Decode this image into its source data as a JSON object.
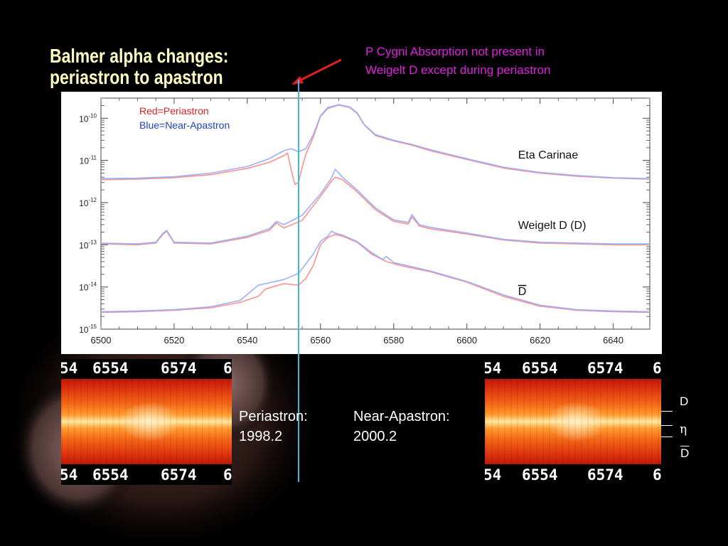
{
  "slide": {
    "title_line1": "Balmer alpha changes:",
    "title_line2": "periastron to apastron",
    "annotation_line1": "P Cygni Absorption not present in",
    "annotation_line2": "Weigelt D except during periastron",
    "captions": [
      {
        "label": "Periastron:",
        "date": "1998.2"
      },
      {
        "label": "Near-Apastron:",
        "date": "2000.2"
      }
    ],
    "image_ticks": [
      "54",
      "6554",
      "6574",
      "6"
    ],
    "slit_labels": [
      "D",
      "η",
      "D"
    ],
    "colors": {
      "title": "#ffffc0",
      "annotation": "#e020e0",
      "marker": "#40b8d8",
      "arrow": "#e02020"
    }
  },
  "chart_data": {
    "type": "line",
    "scale_y": "log",
    "xlim": [
      6500,
      6650
    ],
    "ylim": [
      1e-15,
      3e-10
    ],
    "x_ticks": [
      "6500",
      "6520",
      "6540",
      "6560",
      "6580",
      "6600",
      "6620",
      "6640"
    ],
    "x_tick_values": [
      6500,
      6520,
      6540,
      6560,
      6580,
      6600,
      6620,
      6640
    ],
    "y_ticks": [
      {
        "mant": "10",
        "exp": "-10",
        "value": 1e-10
      },
      {
        "mant": "10",
        "exp": "-11",
        "value": 1e-11
      },
      {
        "mant": "10",
        "exp": "-12",
        "value": 1e-12
      },
      {
        "mant": "10",
        "exp": "-13",
        "value": 1e-13
      },
      {
        "mant": "10",
        "exp": "-14",
        "value": 1e-14
      },
      {
        "mant": "10",
        "exp": "-15",
        "value": 1e-15
      }
    ],
    "legend": [
      {
        "text": "Red=Periastron",
        "color": "#e02020"
      },
      {
        "text": "Blue=Near-Apastron",
        "color": "#2040c0"
      }
    ],
    "marker_x": 6554,
    "labels": [
      {
        "text": "Eta Carinae",
        "x": 6614,
        "y": 1.1e-11
      },
      {
        "text": "Weigelt D  (D)",
        "x": 6614,
        "y": 2.4e-13
      },
      {
        "text": "D",
        "x": 6614,
        "y": 6.5e-15,
        "overline": true
      }
    ],
    "series": [
      {
        "name": "Eta Carinae (periastron)",
        "color": "#ff9090",
        "points": [
          [
            6500,
            3.5e-12
          ],
          [
            6510,
            3.6e-12
          ],
          [
            6520,
            3.9e-12
          ],
          [
            6530,
            4.6e-12
          ],
          [
            6540,
            6.5e-12
          ],
          [
            6546,
            9e-12
          ],
          [
            6550,
            1.3e-11
          ],
          [
            6551,
            1.5e-11
          ],
          [
            6552,
            6e-12
          ],
          [
            6553,
            2.7e-12
          ],
          [
            6554,
            3e-12
          ],
          [
            6555,
            7e-12
          ],
          [
            6556,
            1.4e-11
          ],
          [
            6558,
            3.5e-11
          ],
          [
            6560,
            1.1e-10
          ],
          [
            6562,
            1.7e-10
          ],
          [
            6565,
            2.05e-10
          ],
          [
            6568,
            1.8e-10
          ],
          [
            6570,
            1.3e-10
          ],
          [
            6572,
            6.8e-11
          ],
          [
            6575,
            3.9e-11
          ],
          [
            6580,
            2.9e-11
          ],
          [
            6585,
            2.3e-11
          ],
          [
            6590,
            1.7e-11
          ],
          [
            6600,
            1.05e-11
          ],
          [
            6610,
            6.6e-12
          ],
          [
            6620,
            5e-12
          ],
          [
            6630,
            4.2e-12
          ],
          [
            6640,
            3.8e-12
          ],
          [
            6650,
            3.6e-12
          ]
        ]
      },
      {
        "name": "Eta Carinae (near-apastron)",
        "color": "#9ab0ff",
        "points": [
          [
            6500,
            3.7e-12
          ],
          [
            6510,
            3.8e-12
          ],
          [
            6520,
            4.1e-12
          ],
          [
            6530,
            5e-12
          ],
          [
            6540,
            7.2e-12
          ],
          [
            6546,
            1.1e-11
          ],
          [
            6550,
            1.7e-11
          ],
          [
            6552,
            1.9e-11
          ],
          [
            6554,
            1.6e-11
          ],
          [
            6556,
            1.9e-11
          ],
          [
            6558,
            4e-11
          ],
          [
            6560,
            1.15e-10
          ],
          [
            6562,
            1.8e-10
          ],
          [
            6565,
            2.1e-10
          ],
          [
            6568,
            1.85e-10
          ],
          [
            6570,
            1.35e-10
          ],
          [
            6572,
            7e-11
          ],
          [
            6575,
            4.1e-11
          ],
          [
            6580,
            3e-11
          ],
          [
            6585,
            2.4e-11
          ],
          [
            6590,
            1.8e-11
          ],
          [
            6600,
            1.1e-11
          ],
          [
            6610,
            6.9e-12
          ],
          [
            6620,
            5.2e-12
          ],
          [
            6630,
            4.4e-12
          ],
          [
            6640,
            3.9e-12
          ],
          [
            6650,
            3.7e-12
          ]
        ]
      },
      {
        "name": "Weigelt D (periastron)",
        "color": "#ff9090",
        "points": [
          [
            6500,
            1.05e-13
          ],
          [
            6510,
            1e-13
          ],
          [
            6515,
            1.1e-13
          ],
          [
            6517,
            1.8e-13
          ],
          [
            6518,
            2.1e-13
          ],
          [
            6520,
            1.1e-13
          ],
          [
            6530,
            1.05e-13
          ],
          [
            6540,
            1.5e-13
          ],
          [
            6546,
            2.2e-13
          ],
          [
            6548,
            3.3e-13
          ],
          [
            6550,
            2.5e-13
          ],
          [
            6555,
            3.8e-13
          ],
          [
            6560,
            1.4e-12
          ],
          [
            6563,
            3.2e-12
          ],
          [
            6564,
            4e-12
          ],
          [
            6566,
            3.5e-12
          ],
          [
            6570,
            1.8e-12
          ],
          [
            6575,
            6.8e-13
          ],
          [
            6580,
            3.6e-13
          ],
          [
            6584,
            3.1e-13
          ],
          [
            6585,
            4.6e-13
          ],
          [
            6587,
            2.8e-13
          ],
          [
            6590,
            2.4e-13
          ],
          [
            6600,
            1.8e-13
          ],
          [
            6610,
            1.3e-13
          ],
          [
            6620,
            1.1e-13
          ],
          [
            6630,
            1.05e-13
          ],
          [
            6640,
            1e-13
          ],
          [
            6650,
            1e-13
          ]
        ]
      },
      {
        "name": "Weigelt D (near-apastron)",
        "color": "#9ab0ff",
        "points": [
          [
            6500,
            1.1e-13
          ],
          [
            6510,
            1.05e-13
          ],
          [
            6515,
            1.15e-13
          ],
          [
            6517,
            1.9e-13
          ],
          [
            6518,
            2.2e-13
          ],
          [
            6520,
            1.15e-13
          ],
          [
            6530,
            1.1e-13
          ],
          [
            6540,
            1.6e-13
          ],
          [
            6546,
            2.4e-13
          ],
          [
            6548,
            3.6e-13
          ],
          [
            6550,
            3e-13
          ],
          [
            6555,
            5e-13
          ],
          [
            6560,
            1.6e-12
          ],
          [
            6563,
            3.8e-12
          ],
          [
            6564,
            6.2e-12
          ],
          [
            6566,
            4e-12
          ],
          [
            6570,
            2e-12
          ],
          [
            6575,
            7.5e-13
          ],
          [
            6580,
            3.9e-13
          ],
          [
            6584,
            3.4e-13
          ],
          [
            6585,
            5.2e-13
          ],
          [
            6587,
            3e-13
          ],
          [
            6590,
            2.6e-13
          ],
          [
            6600,
            1.9e-13
          ],
          [
            6610,
            1.35e-13
          ],
          [
            6620,
            1.15e-13
          ],
          [
            6630,
            1.1e-13
          ],
          [
            6640,
            1.05e-13
          ],
          [
            6650,
            1.05e-13
          ]
        ]
      },
      {
        "name": "D-bar (periastron)",
        "color": "#ff9090",
        "points": [
          [
            6500,
            2.5e-15
          ],
          [
            6510,
            2.6e-15
          ],
          [
            6520,
            2.8e-15
          ],
          [
            6530,
            3.2e-15
          ],
          [
            6538,
            4.3e-15
          ],
          [
            6543,
            6e-15
          ],
          [
            6545,
            9e-15
          ],
          [
            6550,
            1.2e-14
          ],
          [
            6554,
            1.1e-14
          ],
          [
            6556,
            1.6e-14
          ],
          [
            6558,
            3.2e-14
          ],
          [
            6560,
            1e-13
          ],
          [
            6562,
            1.5e-13
          ],
          [
            6564,
            1.75e-13
          ],
          [
            6566,
            1.6e-13
          ],
          [
            6570,
            1.15e-13
          ],
          [
            6574,
            6e-14
          ],
          [
            6578,
            4e-14
          ],
          [
            6582,
            3.2e-14
          ],
          [
            6590,
            2.3e-14
          ],
          [
            6600,
            1.3e-14
          ],
          [
            6610,
            6e-15
          ],
          [
            6620,
            3.5e-15
          ],
          [
            6630,
            2.8e-15
          ],
          [
            6640,
            2.6e-15
          ],
          [
            6650,
            2.5e-15
          ]
        ]
      },
      {
        "name": "D-bar (near-apastron)",
        "color": "#9ab0ff",
        "points": [
          [
            6500,
            2.6e-15
          ],
          [
            6510,
            2.7e-15
          ],
          [
            6520,
            2.9e-15
          ],
          [
            6530,
            3.4e-15
          ],
          [
            6538,
            4.8e-15
          ],
          [
            6543,
            1.1e-14
          ],
          [
            6545,
            1.2e-14
          ],
          [
            6550,
            1.5e-14
          ],
          [
            6554,
            2.1e-14
          ],
          [
            6556,
            3.5e-14
          ],
          [
            6558,
            6e-14
          ],
          [
            6560,
            1.2e-13
          ],
          [
            6562,
            1.6e-13
          ],
          [
            6563,
            2.1e-13
          ],
          [
            6564,
            1.9e-13
          ],
          [
            6566,
            1.7e-13
          ],
          [
            6570,
            1.2e-13
          ],
          [
            6574,
            6.5e-14
          ],
          [
            6577,
            4.5e-14
          ],
          [
            6578,
            5.3e-14
          ],
          [
            6580,
            3.8e-14
          ],
          [
            6590,
            2.4e-14
          ],
          [
            6600,
            1.35e-14
          ],
          [
            6610,
            6.5e-15
          ],
          [
            6620,
            3.7e-15
          ],
          [
            6630,
            2.9e-15
          ],
          [
            6640,
            2.7e-15
          ],
          [
            6650,
            2.6e-15
          ]
        ]
      }
    ]
  }
}
